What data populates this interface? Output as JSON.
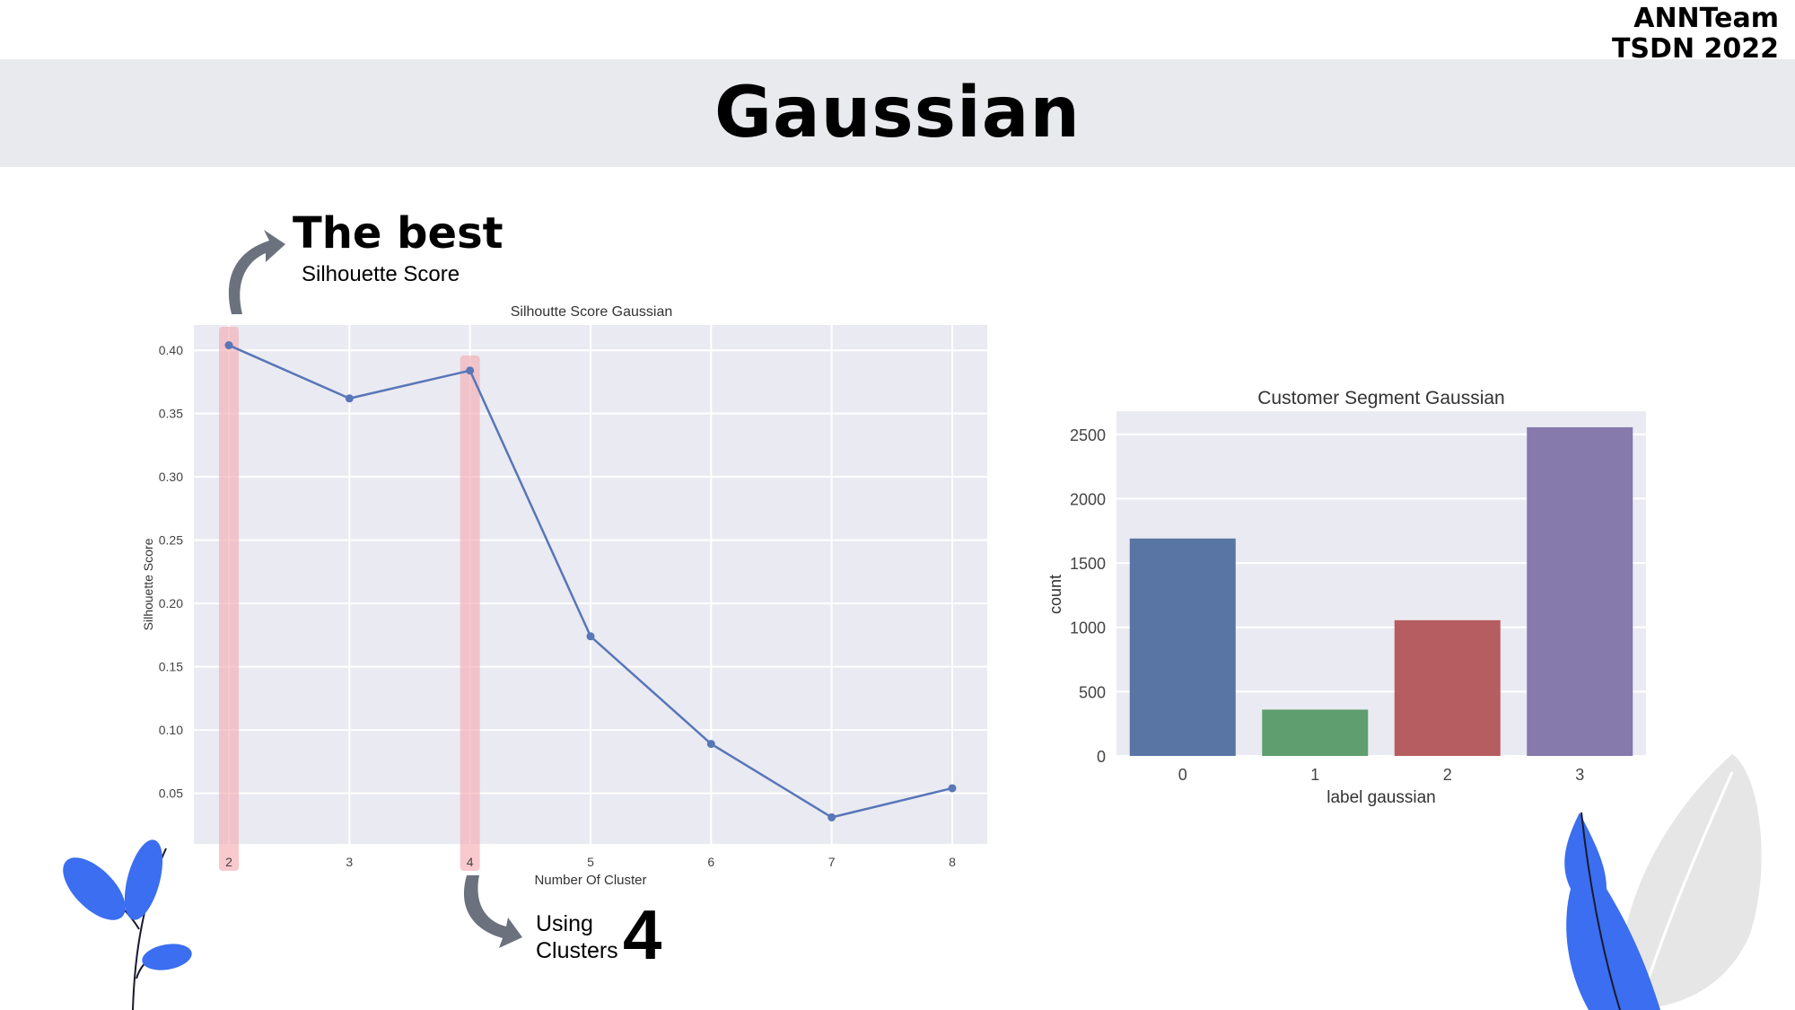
{
  "header": {
    "team_line1": "ANNTeam",
    "team_line2": "TSDN 2022",
    "title": "Gaussian"
  },
  "annotations": {
    "best_title": "The best",
    "best_subtitle": "Silhouette Score",
    "using_line1": "Using",
    "using_line2": "Clusters",
    "using_number": "4"
  },
  "colors": {
    "line": "#5876b8",
    "highlight": "#f4a6ad",
    "plot_bg": "#eaeaf2",
    "arrow": "#6b727d",
    "leaf_blue": "#3b6ef0",
    "leaf_gray": "#e6e6e6"
  },
  "chart_data": [
    {
      "type": "line",
      "title": "Silhoutte Score Gaussian",
      "xlabel": "Number Of Cluster",
      "ylabel": "Silhouette Score",
      "x": [
        2,
        3,
        4,
        5,
        6,
        7,
        8
      ],
      "y": [
        0.404,
        0.362,
        0.384,
        0.174,
        0.089,
        0.031,
        0.054
      ],
      "xlim": [
        2,
        8
      ],
      "ylim": [
        0.01,
        0.42
      ],
      "yticks": [
        "0.05",
        "0.10",
        "0.15",
        "0.20",
        "0.25",
        "0.30",
        "0.35",
        "0.40"
      ],
      "xticks": [
        "2",
        "3",
        "4",
        "5",
        "6",
        "7",
        "8"
      ],
      "highlighted_x": [
        2,
        4
      ],
      "grid": true
    },
    {
      "type": "bar",
      "title": "Customer Segment Gaussian",
      "xlabel": "label gaussian",
      "ylabel": "count",
      "categories": [
        "0",
        "1",
        "2",
        "3"
      ],
      "values": [
        1690,
        360,
        1055,
        2555
      ],
      "bar_colors": [
        "#5875a4",
        "#5f9e6e",
        "#b55d60",
        "#857aab"
      ],
      "ylim": [
        0,
        2680
      ],
      "yticks": [
        "0",
        "500",
        "1000",
        "1500",
        "2000",
        "2500"
      ],
      "grid": true
    }
  ]
}
